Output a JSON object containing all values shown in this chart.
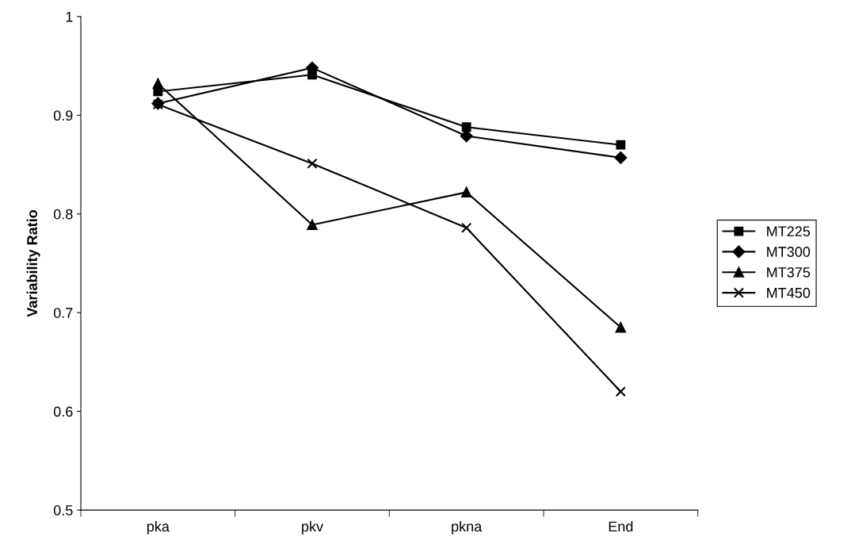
{
  "chart_data": {
    "type": "line",
    "ylabel": "Variability Ratio",
    "categories": [
      "pka",
      "pkv",
      "pkna",
      "End"
    ],
    "series": [
      {
        "name": "MT225",
        "color": "#000000",
        "marker": "square",
        "values": [
          0.924,
          0.941,
          0.888,
          0.87
        ]
      },
      {
        "name": "MT300",
        "color": "#000000",
        "marker": "diamond",
        "values": [
          0.912,
          0.948,
          0.879,
          0.857
        ]
      },
      {
        "name": "MT375",
        "color": "#000000",
        "marker": "triangle",
        "values": [
          0.932,
          0.789,
          0.822,
          0.685
        ]
      },
      {
        "name": "MT450",
        "color": "#000000",
        "marker": "cross",
        "values": [
          0.911,
          0.851,
          0.786,
          0.62
        ]
      }
    ],
    "ylim": [
      0.5,
      1
    ],
    "yticks": [
      0.5,
      0.6,
      0.7,
      0.8,
      0.9,
      1
    ],
    "grid": false,
    "legend": "right",
    "line_style": "solid"
  }
}
